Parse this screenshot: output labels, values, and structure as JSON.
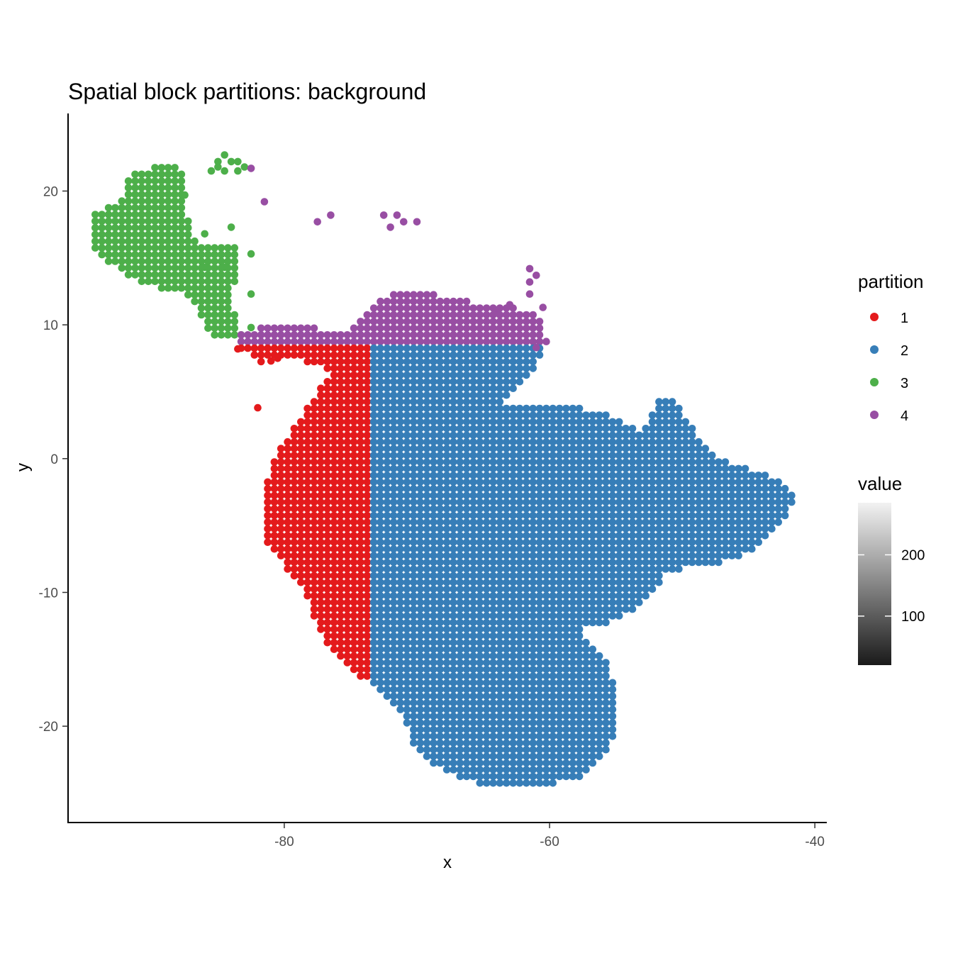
{
  "chart_data": {
    "type": "scatter",
    "title": "Spatial block partitions: background",
    "xlabel": "x",
    "ylabel": "y",
    "xlim": [
      -96.3,
      -39.1
    ],
    "ylim": [
      -27.2,
      25.8
    ],
    "x_ticks": [
      -80,
      -60,
      -40
    ],
    "y_ticks": [
      -20,
      -10,
      0,
      10,
      20
    ],
    "grid": false,
    "grid_step": 0.5,
    "colors": {
      "1": "#e41a1c",
      "2": "#377eb8",
      "3": "#4daf4a",
      "4": "#984ea3"
    },
    "legend_partition": {
      "title": "partition",
      "entries": [
        {
          "label": "1",
          "color": "#e41a1c"
        },
        {
          "label": "2",
          "color": "#377eb8"
        },
        {
          "label": "3",
          "color": "#4daf4a"
        },
        {
          "label": "4",
          "color": "#984ea3"
        }
      ]
    },
    "legend_value": {
      "title": "value",
      "range": [
        20,
        285
      ],
      "ticks": [
        100,
        200
      ],
      "low_color": "#1a1a1a",
      "high_color": "#f2f2f2"
    },
    "regions": [
      {
        "partition": "3",
        "polygon": [
          [
            -94.5,
            18.5
          ],
          [
            -92.5,
            19
          ],
          [
            -91.5,
            21.5
          ],
          [
            -88.5,
            22
          ],
          [
            -87.5,
            21.5
          ],
          [
            -87.5,
            19
          ],
          [
            -86.5,
            16
          ],
          [
            -83.5,
            16
          ],
          [
            -83.5,
            14
          ],
          [
            -84,
            11.5
          ],
          [
            -83,
            9
          ],
          [
            -84.5,
            8.8
          ],
          [
            -86,
            9.5
          ],
          [
            -86.5,
            11.5
          ],
          [
            -88,
            12.5
          ],
          [
            -90.5,
            13
          ],
          [
            -93,
            14.5
          ],
          [
            -94.5,
            16
          ]
        ]
      },
      {
        "partition": "4",
        "polygon": [
          [
            -83.5,
            8.7
          ],
          [
            -83.5,
            9.5
          ],
          [
            -80,
            10
          ],
          [
            -75,
            9.5
          ],
          [
            -74,
            11
          ],
          [
            -72,
            12.3
          ],
          [
            -70,
            12.8
          ],
          [
            -68,
            12
          ],
          [
            -64,
            11.5
          ],
          [
            -61,
            11
          ],
          [
            -60.5,
            10.5
          ],
          [
            -60.2,
            8.7
          ]
        ]
      },
      {
        "partition": "1",
        "polygon": [
          [
            -84,
            8.5
          ],
          [
            -73.5,
            8.5
          ],
          [
            -73.5,
            -16.5
          ],
          [
            -75,
            -16
          ],
          [
            -77,
            -13.5
          ],
          [
            -78.5,
            -10
          ],
          [
            -80,
            -8
          ],
          [
            -81.3,
            -6.3
          ],
          [
            -81.3,
            -1.5
          ],
          [
            -80.5,
            0.5
          ],
          [
            -79.5,
            2
          ],
          [
            -78.5,
            3.5
          ],
          [
            -77.5,
            5
          ],
          [
            -76.5,
            6.5
          ],
          [
            -77.5,
            7
          ],
          [
            -79,
            7.5
          ],
          [
            -82,
            7.2
          ],
          [
            -83,
            8
          ]
        ]
      },
      {
        "partition": "2",
        "polygon": [
          [
            -73.5,
            8.5
          ],
          [
            -60.2,
            8.5
          ],
          [
            -61,
            7
          ],
          [
            -62.5,
            5
          ],
          [
            -63.5,
            4.2
          ],
          [
            -58,
            3.8
          ],
          [
            -56,
            3.5
          ],
          [
            -54,
            2.5
          ],
          [
            -53,
            2
          ],
          [
            -51.8,
            4.3
          ],
          [
            -50.5,
            4.3
          ],
          [
            -49.5,
            2.8
          ],
          [
            -48.3,
            1
          ],
          [
            -47.5,
            0
          ],
          [
            -45,
            -0.8
          ],
          [
            -43,
            -1.5
          ],
          [
            -41.5,
            -2.7
          ],
          [
            -42,
            -4.5
          ],
          [
            -44,
            -6.5
          ],
          [
            -46,
            -7.5
          ],
          [
            -49,
            -8.2
          ],
          [
            -51,
            -8.3
          ],
          [
            -52,
            -10
          ],
          [
            -54,
            -11.5
          ],
          [
            -56,
            -12.5
          ],
          [
            -57.5,
            -12.5
          ],
          [
            -57,
            -14
          ],
          [
            -55.5,
            -15
          ],
          [
            -55,
            -17.5
          ],
          [
            -55,
            -20.5
          ],
          [
            -56,
            -22.5
          ],
          [
            -58,
            -24
          ],
          [
            -60.5,
            -24.5
          ],
          [
            -63,
            -24.7
          ],
          [
            -65,
            -24.5
          ],
          [
            -68,
            -23.3
          ],
          [
            -70,
            -22
          ],
          [
            -71,
            -19
          ],
          [
            -72.5,
            -17.5
          ],
          [
            -73.5,
            -16.8
          ]
        ]
      }
    ],
    "isolated_points": [
      {
        "partition": "3",
        "x": [
          -84.5,
          -85,
          -84,
          -83.5,
          -85,
          -83,
          -85.5,
          -84.5,
          -83.5,
          -86,
          -84,
          -82.5,
          -86,
          -84.5,
          -82.5,
          -82.5,
          -87.5
        ],
        "y": [
          22.7,
          22.2,
          22.2,
          22.2,
          21.8,
          21.8,
          21.5,
          21.5,
          21.5,
          16.8,
          17.3,
          15.3,
          14.3,
          14.3,
          12.3,
          9.8,
          19.7
        ]
      },
      {
        "partition": "4",
        "x": [
          -82.5,
          -81.5,
          -77.5,
          -76.5,
          -72.5,
          -71.5,
          -71,
          -70,
          -72,
          -64,
          -63,
          -61.5,
          -61,
          -61.5,
          -61.5,
          -60.5,
          -61
        ],
        "y": [
          21.7,
          19.2,
          17.7,
          18.2,
          18.2,
          18.2,
          17.7,
          17.7,
          17.3,
          10.9,
          11.5,
          14.2,
          13.7,
          13.2,
          12.3,
          11.3,
          8.3
        ]
      },
      {
        "partition": "1",
        "x": [
          -82,
          -83.5,
          -80.5,
          -81
        ],
        "y": [
          3.8,
          8.2,
          7.5,
          7.3
        ]
      }
    ]
  }
}
